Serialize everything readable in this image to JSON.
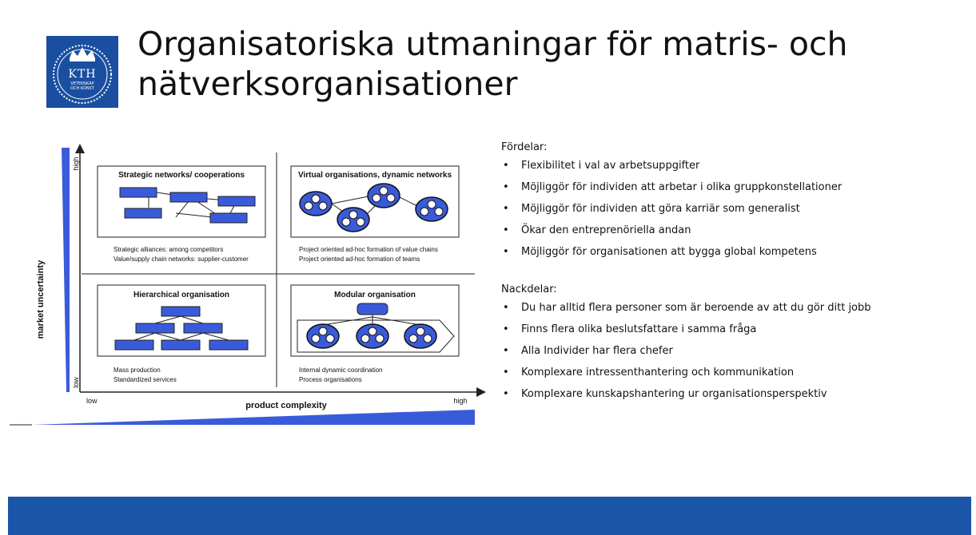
{
  "logo": {
    "name": "KTH",
    "line1": "VETENSKAP",
    "line2": "OCH KONST"
  },
  "title": "Organisatoriska utmaningar för matris- och nätverksorganisationer",
  "diagram": {
    "y_axis_label": "market uncertainty",
    "y_high": "high",
    "y_low": "low",
    "x_axis_label": "product complexity",
    "x_low": "low",
    "x_high": "high",
    "quadrants": {
      "strategic": {
        "title": "Strategic networks/ cooperations",
        "line1": "Strategic alliances: among competitors",
        "line2": "Value/supply chain networks: supplier-customer"
      },
      "virtual": {
        "title": "Virtual organisations, dynamic networks",
        "line1": "Project oriented ad-hoc formation of value chains",
        "line2": "Project oriented ad-hoc formation of teams"
      },
      "hierarchical": {
        "title": "Hierarchical organisation",
        "line1": "Mass production",
        "line2": "Standardized services"
      },
      "modular": {
        "title": "Modular organisation",
        "line1": "Internal dynamic coordination",
        "line2": "Process organisations"
      }
    },
    "accent_color": "#3a5bd9"
  },
  "fordelar": {
    "heading": "Fördelar:",
    "items": [
      "Flexibilitet i val av arbetsuppgifter",
      "Möjliggör för individen att arbetar i olika gruppkonstellationer",
      "Möjliggör för individen att göra karriär som generalist",
      "Ökar den entreprenöriella andan",
      "Möjliggör för organisationen att bygga global kompetens"
    ]
  },
  "nackdelar": {
    "heading": "Nackdelar:",
    "items": [
      "Du har alltid flera personer som är beroende av att du gör ditt jobb",
      "Finns flera olika beslutsfattare i samma fråga",
      "Alla Individer har flera chefer",
      "Komplexare intressenthantering och kommunikation",
      "Komplexare kunskapshantering ur organisationsperspektiv"
    ]
  },
  "bullet_glyph": "•",
  "footer_color": "#1a55a8"
}
